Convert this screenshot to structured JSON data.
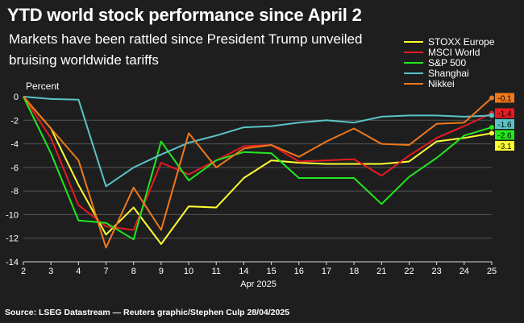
{
  "title": "YTD world stock performance since April 2",
  "subtitle": "Markets have been rattled since President Trump unveiled bruising worldwide tariffs",
  "source": "Source: LSEG Datastream — Reuters graphic/Stephen Culp 28/04/2025",
  "chart_data": {
    "type": "line",
    "ylabel": "Percent",
    "xlabel": "Apr 2025",
    "ylim": [
      -14,
      0
    ],
    "yticks": [
      0,
      -2,
      -4,
      -6,
      -8,
      -10,
      -12,
      -14
    ],
    "x": [
      2,
      3,
      4,
      7,
      8,
      9,
      10,
      11,
      14,
      15,
      16,
      17,
      18,
      21,
      22,
      23,
      24,
      25
    ],
    "series": [
      {
        "name": "STOXX Europe",
        "color": "#ffff33",
        "end_label": "-3.1",
        "values": [
          0,
          -2.7,
          -7.5,
          -11.7,
          -9.4,
          -12.5,
          -9.3,
          -9.4,
          -6.9,
          -5.4,
          -5.6,
          -5.7,
          -5.7,
          -5.7,
          -5.5,
          -3.8,
          -3.5,
          -3.1
        ]
      },
      {
        "name": "MSCI World",
        "color": "#e81a22",
        "end_label": "-1.4",
        "values": [
          0,
          -3.5,
          -9.2,
          -11.0,
          -11.3,
          -5.6,
          -6.6,
          -5.4,
          -4.2,
          -4.1,
          -5.5,
          -5.4,
          -5.3,
          -6.7,
          -5.0,
          -3.5,
          -2.5,
          -1.4
        ]
      },
      {
        "name": "S&P 500",
        "color": "#22e81e",
        "end_label": "-2.6",
        "values": [
          0,
          -4.8,
          -10.5,
          -10.7,
          -12.1,
          -3.8,
          -7.1,
          -5.4,
          -4.7,
          -4.8,
          -6.9,
          -6.9,
          -6.9,
          -9.1,
          -6.8,
          -5.2,
          -3.3,
          -2.6
        ]
      },
      {
        "name": "Shanghai",
        "color": "#5bc3c8",
        "end_label": "-1.6",
        "values": [
          0,
          -0.2,
          -0.25,
          -7.6,
          -6.0,
          -4.9,
          -3.9,
          -3.3,
          -2.6,
          -2.5,
          -2.2,
          -2.0,
          -2.2,
          -1.7,
          -1.6,
          -1.6,
          -1.7,
          -1.6
        ]
      },
      {
        "name": "Nikkei",
        "color": "#f0781a",
        "end_label": "-0.1",
        "values": [
          0,
          -2.7,
          -5.4,
          -12.8,
          -7.7,
          -11.3,
          -3.1,
          -6.0,
          -4.4,
          -4.1,
          -5.1,
          -3.8,
          -2.7,
          -4.0,
          -4.1,
          -2.3,
          -2.2,
          -0.1
        ]
      }
    ]
  }
}
